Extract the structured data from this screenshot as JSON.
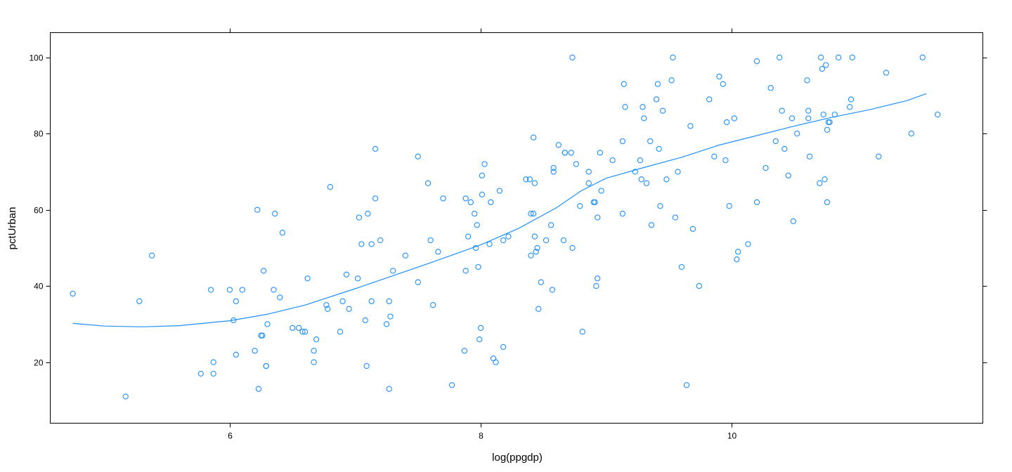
{
  "chart_data": {
    "type": "scatter",
    "title": "",
    "xlabel": "log(ppgdp)",
    "ylabel": "pctUrban",
    "xlim": [
      4.57,
      12.0
    ],
    "ylim": [
      4.0,
      106.5
    ],
    "xticks": [
      6,
      8,
      10
    ],
    "yticks": [
      20,
      40,
      60,
      80,
      100
    ],
    "grid": false,
    "color": "#1e90ff",
    "points": [
      [
        4.75,
        38
      ],
      [
        5.17,
        11
      ],
      [
        5.28,
        36
      ],
      [
        5.38,
        48
      ],
      [
        5.77,
        17
      ],
      [
        5.85,
        39
      ],
      [
        5.87,
        20
      ],
      [
        5.87,
        17
      ],
      [
        6.0,
        39
      ],
      [
        6.03,
        31
      ],
      [
        6.05,
        36
      ],
      [
        6.05,
        22
      ],
      [
        6.1,
        39
      ],
      [
        6.2,
        23
      ],
      [
        6.22,
        60
      ],
      [
        6.23,
        13
      ],
      [
        6.25,
        27
      ],
      [
        6.26,
        27
      ],
      [
        6.27,
        44
      ],
      [
        6.29,
        19
      ],
      [
        6.29,
        19
      ],
      [
        6.3,
        30
      ],
      [
        6.35,
        39
      ],
      [
        6.36,
        59
      ],
      [
        6.4,
        37
      ],
      [
        6.42,
        54
      ],
      [
        6.5,
        29
      ],
      [
        6.55,
        29
      ],
      [
        6.58,
        28
      ],
      [
        6.6,
        28
      ],
      [
        6.62,
        42
      ],
      [
        6.67,
        20
      ],
      [
        6.67,
        23
      ],
      [
        6.69,
        26
      ],
      [
        6.77,
        35
      ],
      [
        6.78,
        34
      ],
      [
        6.8,
        66
      ],
      [
        6.88,
        28
      ],
      [
        6.9,
        36
      ],
      [
        6.93,
        43
      ],
      [
        6.95,
        34
      ],
      [
        7.02,
        42
      ],
      [
        7.03,
        58
      ],
      [
        7.05,
        51
      ],
      [
        7.08,
        31
      ],
      [
        7.09,
        19
      ],
      [
        7.1,
        59
      ],
      [
        7.13,
        51
      ],
      [
        7.13,
        36
      ],
      [
        7.16,
        63
      ],
      [
        7.16,
        76
      ],
      [
        7.2,
        52
      ],
      [
        7.25,
        30
      ],
      [
        7.27,
        36
      ],
      [
        7.27,
        13
      ],
      [
        7.28,
        32
      ],
      [
        7.3,
        44
      ],
      [
        7.4,
        48
      ],
      [
        7.5,
        74
      ],
      [
        7.5,
        41
      ],
      [
        7.58,
        67
      ],
      [
        7.6,
        52
      ],
      [
        7.62,
        35
      ],
      [
        7.66,
        49
      ],
      [
        7.7,
        63
      ],
      [
        7.77,
        14
      ],
      [
        7.87,
        23
      ],
      [
        7.88,
        44
      ],
      [
        7.88,
        63
      ],
      [
        7.9,
        53
      ],
      [
        7.92,
        62
      ],
      [
        7.95,
        59
      ],
      [
        7.96,
        50
      ],
      [
        7.97,
        56
      ],
      [
        7.98,
        45
      ],
      [
        7.99,
        26
      ],
      [
        8.0,
        29
      ],
      [
        8.01,
        64
      ],
      [
        8.01,
        69
      ],
      [
        8.03,
        72
      ],
      [
        8.07,
        51
      ],
      [
        8.08,
        62
      ],
      [
        8.1,
        21
      ],
      [
        8.12,
        20
      ],
      [
        8.15,
        65
      ],
      [
        8.18,
        24
      ],
      [
        8.18,
        52
      ],
      [
        8.22,
        53
      ],
      [
        8.36,
        68
      ],
      [
        8.39,
        68
      ],
      [
        8.4,
        48
      ],
      [
        8.4,
        59
      ],
      [
        8.42,
        59
      ],
      [
        8.42,
        79
      ],
      [
        8.43,
        67
      ],
      [
        8.43,
        53
      ],
      [
        8.44,
        49
      ],
      [
        8.45,
        50
      ],
      [
        8.46,
        34
      ],
      [
        8.48,
        41
      ],
      [
        8.52,
        52
      ],
      [
        8.56,
        56
      ],
      [
        8.57,
        39
      ],
      [
        8.58,
        70
      ],
      [
        8.58,
        71
      ],
      [
        8.62,
        77
      ],
      [
        8.66,
        52
      ],
      [
        8.67,
        75
      ],
      [
        8.67,
        75
      ],
      [
        8.72,
        75
      ],
      [
        8.73,
        50
      ],
      [
        8.73,
        100
      ],
      [
        8.76,
        72
      ],
      [
        8.79,
        61
      ],
      [
        8.81,
        28
      ],
      [
        8.86,
        67
      ],
      [
        8.86,
        70
      ],
      [
        8.9,
        62
      ],
      [
        8.91,
        62
      ],
      [
        8.92,
        40
      ],
      [
        8.93,
        42
      ],
      [
        8.93,
        58
      ],
      [
        8.95,
        75
      ],
      [
        8.96,
        65
      ],
      [
        9.05,
        73
      ],
      [
        9.13,
        59
      ],
      [
        9.13,
        78
      ],
      [
        9.14,
        93
      ],
      [
        9.15,
        87
      ],
      [
        9.23,
        70
      ],
      [
        9.27,
        73
      ],
      [
        9.28,
        68
      ],
      [
        9.29,
        87
      ],
      [
        9.3,
        84
      ],
      [
        9.32,
        67
      ],
      [
        9.35,
        78
      ],
      [
        9.36,
        56
      ],
      [
        9.4,
        89
      ],
      [
        9.41,
        93
      ],
      [
        9.42,
        76
      ],
      [
        9.43,
        61
      ],
      [
        9.45,
        86
      ],
      [
        9.48,
        68
      ],
      [
        9.52,
        94
      ],
      [
        9.53,
        100
      ],
      [
        9.55,
        58
      ],
      [
        9.57,
        70
      ],
      [
        9.6,
        45
      ],
      [
        9.64,
        14
      ],
      [
        9.67,
        82
      ],
      [
        9.69,
        55
      ],
      [
        9.74,
        40
      ],
      [
        9.82,
        89
      ],
      [
        9.86,
        74
      ],
      [
        9.9,
        95
      ],
      [
        9.93,
        93
      ],
      [
        9.95,
        73
      ],
      [
        9.96,
        83
      ],
      [
        9.98,
        61
      ],
      [
        10.02,
        84
      ],
      [
        10.04,
        47
      ],
      [
        10.05,
        49
      ],
      [
        10.13,
        51
      ],
      [
        10.2,
        62
      ],
      [
        10.2,
        99
      ],
      [
        10.27,
        71
      ],
      [
        10.31,
        92
      ],
      [
        10.35,
        78
      ],
      [
        10.38,
        100
      ],
      [
        10.4,
        86
      ],
      [
        10.42,
        76
      ],
      [
        10.45,
        69
      ],
      [
        10.48,
        84
      ],
      [
        10.49,
        57
      ],
      [
        10.52,
        80
      ],
      [
        10.6,
        94
      ],
      [
        10.61,
        86
      ],
      [
        10.61,
        84
      ],
      [
        10.62,
        74
      ],
      [
        10.7,
        67
      ],
      [
        10.71,
        100
      ],
      [
        10.72,
        97
      ],
      [
        10.73,
        85
      ],
      [
        10.74,
        68
      ],
      [
        10.75,
        98
      ],
      [
        10.76,
        62
      ],
      [
        10.76,
        81
      ],
      [
        10.77,
        83
      ],
      [
        10.78,
        83
      ],
      [
        10.82,
        85
      ],
      [
        10.85,
        100
      ],
      [
        10.94,
        87
      ],
      [
        10.95,
        89
      ],
      [
        10.96,
        100
      ],
      [
        11.17,
        74
      ],
      [
        11.23,
        96
      ],
      [
        11.43,
        80
      ],
      [
        11.52,
        100
      ],
      [
        11.64,
        85
      ]
    ],
    "smooth_line": [
      [
        4.75,
        30.2
      ],
      [
        5.0,
        29.5
      ],
      [
        5.3,
        29.3
      ],
      [
        5.6,
        29.6
      ],
      [
        6.0,
        30.9
      ],
      [
        6.3,
        32.6
      ],
      [
        6.6,
        35.0
      ],
      [
        7.0,
        39.3
      ],
      [
        7.3,
        42.7
      ],
      [
        7.6,
        46.1
      ],
      [
        8.0,
        50.8
      ],
      [
        8.3,
        55.1
      ],
      [
        8.6,
        60.5
      ],
      [
        8.8,
        65.0
      ],
      [
        9.0,
        68.3
      ],
      [
        9.3,
        71.1
      ],
      [
        9.6,
        73.8
      ],
      [
        9.9,
        77.0
      ],
      [
        10.2,
        79.5
      ],
      [
        10.5,
        82.0
      ],
      [
        10.8,
        84.3
      ],
      [
        11.1,
        86.3
      ],
      [
        11.4,
        88.7
      ],
      [
        11.55,
        90.5
      ]
    ]
  }
}
